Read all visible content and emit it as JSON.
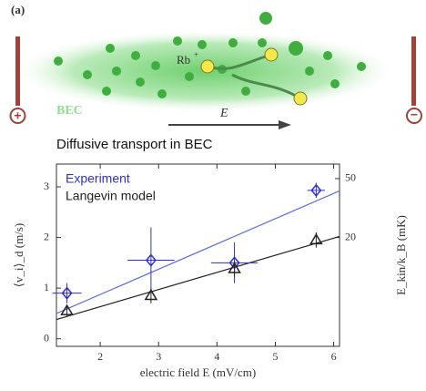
{
  "illustration": {
    "panel_label": "(a)",
    "ion_label": "Rb",
    "ion_charge": "+",
    "cloud_label": "BEC",
    "field_label": "E",
    "left_electrode": "+",
    "right_electrode": "−",
    "caption": "Diffusive transport in BEC"
  },
  "chart_data": {
    "type": "scatter",
    "xlabel": "electric field E (mV/cm)",
    "ylabel": "⟨v_i⟩_d (m/s)",
    "y2label": "E_kin/k_B (mK)",
    "xlim": [
      1.25,
      6.1
    ],
    "xticks": [
      2,
      3,
      4,
      5,
      6
    ],
    "ylim": [
      -0.15,
      3.45
    ],
    "yticks": [
      0,
      1,
      2,
      3
    ],
    "y2lim": [
      0,
      59.5
    ],
    "y2ticks": [
      20,
      50
    ],
    "y2scale": "sqrt",
    "legend": "top-left",
    "series": [
      {
        "name": "Experiment",
        "color": "#2f2fc8",
        "marker": "diamond",
        "x": [
          1.43,
          2.87,
          4.3,
          5.7
        ],
        "values": [
          0.9,
          1.55,
          1.5,
          2.93
        ],
        "errors": [
          0.2,
          0.65,
          0.4,
          0.15
        ],
        "xerrors": [
          0.25,
          0.4,
          0.4,
          0.15
        ]
      },
      {
        "name": "Langevin model",
        "color": "#222222",
        "marker": "triangle",
        "x": [
          1.43,
          2.87,
          4.3,
          5.7
        ],
        "values": [
          0.55,
          0.85,
          1.38,
          1.95
        ],
        "errors": [
          0.12,
          0.15,
          0.15,
          0.15
        ]
      }
    ],
    "fits": [
      {
        "color": "#5a6ee0",
        "x": [
          1.25,
          6.1
        ],
        "values": [
          0.5,
          2.92
        ]
      },
      {
        "color": "#222222",
        "x": [
          1.25,
          6.1
        ],
        "values": [
          0.38,
          2.02
        ]
      }
    ]
  }
}
